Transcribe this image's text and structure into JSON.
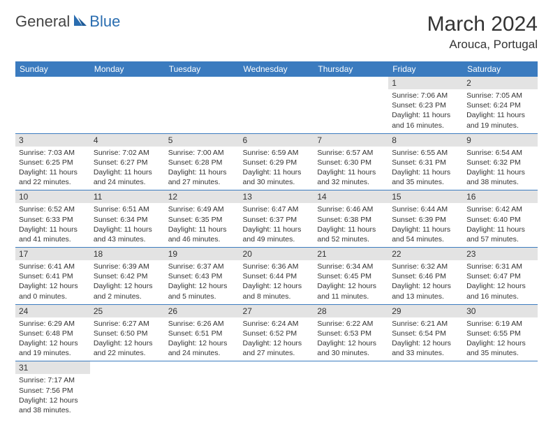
{
  "brand": {
    "part1": "General",
    "part2": "Blue"
  },
  "title": "March 2024",
  "location": "Arouca, Portugal",
  "colors": {
    "header_bg": "#3b7bbf",
    "header_fg": "#ffffff",
    "daynum_bg": "#e3e3e3",
    "row_border": "#3b7bbf",
    "brand_blue": "#2a6db0",
    "text": "#333333"
  },
  "weekdays": [
    "Sunday",
    "Monday",
    "Tuesday",
    "Wednesday",
    "Thursday",
    "Friday",
    "Saturday"
  ],
  "weeks": [
    [
      null,
      null,
      null,
      null,
      null,
      {
        "n": "1",
        "sr": "Sunrise: 7:06 AM",
        "ss": "Sunset: 6:23 PM",
        "dl": "Daylight: 11 hours and 16 minutes."
      },
      {
        "n": "2",
        "sr": "Sunrise: 7:05 AM",
        "ss": "Sunset: 6:24 PM",
        "dl": "Daylight: 11 hours and 19 minutes."
      }
    ],
    [
      {
        "n": "3",
        "sr": "Sunrise: 7:03 AM",
        "ss": "Sunset: 6:25 PM",
        "dl": "Daylight: 11 hours and 22 minutes."
      },
      {
        "n": "4",
        "sr": "Sunrise: 7:02 AM",
        "ss": "Sunset: 6:27 PM",
        "dl": "Daylight: 11 hours and 24 minutes."
      },
      {
        "n": "5",
        "sr": "Sunrise: 7:00 AM",
        "ss": "Sunset: 6:28 PM",
        "dl": "Daylight: 11 hours and 27 minutes."
      },
      {
        "n": "6",
        "sr": "Sunrise: 6:59 AM",
        "ss": "Sunset: 6:29 PM",
        "dl": "Daylight: 11 hours and 30 minutes."
      },
      {
        "n": "7",
        "sr": "Sunrise: 6:57 AM",
        "ss": "Sunset: 6:30 PM",
        "dl": "Daylight: 11 hours and 32 minutes."
      },
      {
        "n": "8",
        "sr": "Sunrise: 6:55 AM",
        "ss": "Sunset: 6:31 PM",
        "dl": "Daylight: 11 hours and 35 minutes."
      },
      {
        "n": "9",
        "sr": "Sunrise: 6:54 AM",
        "ss": "Sunset: 6:32 PM",
        "dl": "Daylight: 11 hours and 38 minutes."
      }
    ],
    [
      {
        "n": "10",
        "sr": "Sunrise: 6:52 AM",
        "ss": "Sunset: 6:33 PM",
        "dl": "Daylight: 11 hours and 41 minutes."
      },
      {
        "n": "11",
        "sr": "Sunrise: 6:51 AM",
        "ss": "Sunset: 6:34 PM",
        "dl": "Daylight: 11 hours and 43 minutes."
      },
      {
        "n": "12",
        "sr": "Sunrise: 6:49 AM",
        "ss": "Sunset: 6:35 PM",
        "dl": "Daylight: 11 hours and 46 minutes."
      },
      {
        "n": "13",
        "sr": "Sunrise: 6:47 AM",
        "ss": "Sunset: 6:37 PM",
        "dl": "Daylight: 11 hours and 49 minutes."
      },
      {
        "n": "14",
        "sr": "Sunrise: 6:46 AM",
        "ss": "Sunset: 6:38 PM",
        "dl": "Daylight: 11 hours and 52 minutes."
      },
      {
        "n": "15",
        "sr": "Sunrise: 6:44 AM",
        "ss": "Sunset: 6:39 PM",
        "dl": "Daylight: 11 hours and 54 minutes."
      },
      {
        "n": "16",
        "sr": "Sunrise: 6:42 AM",
        "ss": "Sunset: 6:40 PM",
        "dl": "Daylight: 11 hours and 57 minutes."
      }
    ],
    [
      {
        "n": "17",
        "sr": "Sunrise: 6:41 AM",
        "ss": "Sunset: 6:41 PM",
        "dl": "Daylight: 12 hours and 0 minutes."
      },
      {
        "n": "18",
        "sr": "Sunrise: 6:39 AM",
        "ss": "Sunset: 6:42 PM",
        "dl": "Daylight: 12 hours and 2 minutes."
      },
      {
        "n": "19",
        "sr": "Sunrise: 6:37 AM",
        "ss": "Sunset: 6:43 PM",
        "dl": "Daylight: 12 hours and 5 minutes."
      },
      {
        "n": "20",
        "sr": "Sunrise: 6:36 AM",
        "ss": "Sunset: 6:44 PM",
        "dl": "Daylight: 12 hours and 8 minutes."
      },
      {
        "n": "21",
        "sr": "Sunrise: 6:34 AM",
        "ss": "Sunset: 6:45 PM",
        "dl": "Daylight: 12 hours and 11 minutes."
      },
      {
        "n": "22",
        "sr": "Sunrise: 6:32 AM",
        "ss": "Sunset: 6:46 PM",
        "dl": "Daylight: 12 hours and 13 minutes."
      },
      {
        "n": "23",
        "sr": "Sunrise: 6:31 AM",
        "ss": "Sunset: 6:47 PM",
        "dl": "Daylight: 12 hours and 16 minutes."
      }
    ],
    [
      {
        "n": "24",
        "sr": "Sunrise: 6:29 AM",
        "ss": "Sunset: 6:48 PM",
        "dl": "Daylight: 12 hours and 19 minutes."
      },
      {
        "n": "25",
        "sr": "Sunrise: 6:27 AM",
        "ss": "Sunset: 6:50 PM",
        "dl": "Daylight: 12 hours and 22 minutes."
      },
      {
        "n": "26",
        "sr": "Sunrise: 6:26 AM",
        "ss": "Sunset: 6:51 PM",
        "dl": "Daylight: 12 hours and 24 minutes."
      },
      {
        "n": "27",
        "sr": "Sunrise: 6:24 AM",
        "ss": "Sunset: 6:52 PM",
        "dl": "Daylight: 12 hours and 27 minutes."
      },
      {
        "n": "28",
        "sr": "Sunrise: 6:22 AM",
        "ss": "Sunset: 6:53 PM",
        "dl": "Daylight: 12 hours and 30 minutes."
      },
      {
        "n": "29",
        "sr": "Sunrise: 6:21 AM",
        "ss": "Sunset: 6:54 PM",
        "dl": "Daylight: 12 hours and 33 minutes."
      },
      {
        "n": "30",
        "sr": "Sunrise: 6:19 AM",
        "ss": "Sunset: 6:55 PM",
        "dl": "Daylight: 12 hours and 35 minutes."
      }
    ],
    [
      {
        "n": "31",
        "sr": "Sunrise: 7:17 AM",
        "ss": "Sunset: 7:56 PM",
        "dl": "Daylight: 12 hours and 38 minutes."
      },
      null,
      null,
      null,
      null,
      null,
      null
    ]
  ]
}
